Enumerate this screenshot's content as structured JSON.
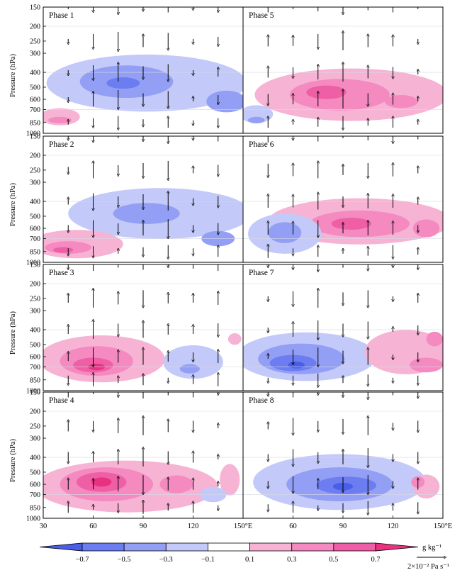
{
  "chart_data": {
    "type": "heatmap",
    "description_unit": "shading: specific humidity anomaly; vectors: vertical motion",
    "x_ticks": [
      "30",
      "60",
      "90",
      "120",
      "150°E"
    ],
    "x_ticks_right": [
      "150°E",
      "60",
      "90",
      "120",
      "150°E"
    ],
    "x_range": [
      30,
      150
    ],
    "y_label": "Pressure (hPa)",
    "y_ticks": [
      "150",
      "200",
      "250",
      "300",
      "400",
      "500",
      "600",
      "700",
      "850",
      "1000"
    ],
    "y_range": [
      150,
      1000
    ],
    "panels": [
      {
        "id": "p1",
        "title": "Phase 1",
        "blobs": [
          {
            "v": -0.1,
            "lon": 92,
            "p": 470,
            "wl": 60,
            "wp": 380
          },
          {
            "v": -0.3,
            "lon": 80,
            "p": 460,
            "wl": 28,
            "wp": 220
          },
          {
            "v": -0.5,
            "lon": 78,
            "p": 470,
            "wl": 10,
            "wp": 80
          },
          {
            "v": -0.3,
            "lon": 140,
            "p": 620,
            "wl": 12,
            "wp": 200
          },
          {
            "v": 0.1,
            "lon": 40,
            "p": 780,
            "wl": 12,
            "wp": 200
          },
          {
            "v": 0.3,
            "lon": 40,
            "p": 820,
            "wl": 7,
            "wp": 80
          }
        ]
      },
      {
        "id": "p5",
        "title": "Phase 5",
        "blobs": [
          {
            "v": 0.1,
            "lon": 95,
            "p": 560,
            "wl": 58,
            "wp": 420
          },
          {
            "v": 0.3,
            "lon": 88,
            "p": 560,
            "wl": 30,
            "wp": 260
          },
          {
            "v": 0.5,
            "lon": 80,
            "p": 540,
            "wl": 12,
            "wp": 110
          },
          {
            "v": 0.3,
            "lon": 125,
            "p": 620,
            "wl": 10,
            "wp": 120
          },
          {
            "v": -0.1,
            "lon": 38,
            "p": 750,
            "wl": 10,
            "wp": 200
          },
          {
            "v": -0.3,
            "lon": 38,
            "p": 820,
            "wl": 5,
            "wp": 80
          }
        ]
      },
      {
        "id": "p2",
        "title": "Phase 2",
        "blobs": [
          {
            "v": -0.1,
            "lon": 100,
            "p": 480,
            "wl": 55,
            "wp": 350
          },
          {
            "v": -0.3,
            "lon": 92,
            "p": 480,
            "wl": 20,
            "wp": 150
          },
          {
            "v": -0.3,
            "lon": 135,
            "p": 700,
            "wl": 10,
            "wp": 160
          },
          {
            "v": 0.1,
            "lon": 50,
            "p": 760,
            "wl": 28,
            "wp": 320
          },
          {
            "v": 0.3,
            "lon": 45,
            "p": 800,
            "wl": 14,
            "wp": 150
          },
          {
            "v": 0.5,
            "lon": 42,
            "p": 830,
            "wl": 6,
            "wp": 60
          }
        ]
      },
      {
        "id": "p6",
        "title": "Phase 6",
        "blobs": [
          {
            "v": 0.1,
            "lon": 100,
            "p": 540,
            "wl": 55,
            "wp": 360
          },
          {
            "v": 0.3,
            "lon": 100,
            "p": 560,
            "wl": 30,
            "wp": 220
          },
          {
            "v": 0.5,
            "lon": 95,
            "p": 560,
            "wl": 12,
            "wp": 100
          },
          {
            "v": 0.3,
            "lon": 140,
            "p": 600,
            "wl": 8,
            "wp": 160
          },
          {
            "v": -0.1,
            "lon": 55,
            "p": 650,
            "wl": 22,
            "wp": 380
          },
          {
            "v": -0.3,
            "lon": 55,
            "p": 640,
            "wl": 10,
            "wp": 200
          }
        ]
      },
      {
        "id": "p3",
        "title": "Phase 3",
        "blobs": [
          {
            "v": 0.1,
            "lon": 65,
            "p": 620,
            "wl": 38,
            "wp": 420
          },
          {
            "v": 0.3,
            "lon": 62,
            "p": 640,
            "wl": 22,
            "wp": 280
          },
          {
            "v": 0.5,
            "lon": 60,
            "p": 680,
            "wl": 12,
            "wp": 150
          },
          {
            "v": 0.7,
            "lon": 62,
            "p": 700,
            "wl": 5,
            "wp": 70
          },
          {
            "v": -0.1,
            "lon": 120,
            "p": 650,
            "wl": 18,
            "wp": 320
          },
          {
            "v": -0.3,
            "lon": 118,
            "p": 720,
            "wl": 6,
            "wp": 100
          },
          {
            "v": 0.1,
            "lon": 145,
            "p": 460,
            "wl": 4,
            "wp": 80
          }
        ]
      },
      {
        "id": "p7",
        "title": "Phase 7",
        "blobs": [
          {
            "v": -0.1,
            "lon": 68,
            "p": 600,
            "wl": 42,
            "wp": 420
          },
          {
            "v": -0.3,
            "lon": 65,
            "p": 620,
            "wl": 26,
            "wp": 280
          },
          {
            "v": -0.5,
            "lon": 60,
            "p": 660,
            "wl": 14,
            "wp": 160
          },
          {
            "v": -0.7,
            "lon": 62,
            "p": 680,
            "wl": 5,
            "wp": 70
          },
          {
            "v": 0.1,
            "lon": 128,
            "p": 560,
            "wl": 25,
            "wp": 360
          },
          {
            "v": 0.3,
            "lon": 140,
            "p": 680,
            "wl": 10,
            "wp": 150
          },
          {
            "v": 0.3,
            "lon": 145,
            "p": 460,
            "wl": 5,
            "wp": 100
          }
        ]
      },
      {
        "id": "p4",
        "title": "Phase 4",
        "blobs": [
          {
            "v": 0.1,
            "lon": 80,
            "p": 620,
            "wl": 55,
            "wp": 460
          },
          {
            "v": 0.3,
            "lon": 68,
            "p": 600,
            "wl": 28,
            "wp": 300
          },
          {
            "v": 0.5,
            "lon": 65,
            "p": 580,
            "wl": 15,
            "wp": 170
          },
          {
            "v": 0.7,
            "lon": 65,
            "p": 580,
            "wl": 6,
            "wp": 80
          },
          {
            "v": 0.3,
            "lon": 110,
            "p": 600,
            "wl": 10,
            "wp": 160
          },
          {
            "v": 0.1,
            "lon": 142,
            "p": 560,
            "wl": 6,
            "wp": 260
          },
          {
            "v": -0.1,
            "lon": 132,
            "p": 700,
            "wl": 8,
            "wp": 160
          }
        ]
      },
      {
        "id": "p8",
        "title": "Phase 8",
        "blobs": [
          {
            "v": -0.1,
            "lon": 88,
            "p": 580,
            "wl": 52,
            "wp": 460
          },
          {
            "v": -0.3,
            "lon": 88,
            "p": 600,
            "wl": 32,
            "wp": 300
          },
          {
            "v": -0.5,
            "lon": 92,
            "p": 610,
            "wl": 18,
            "wp": 160
          },
          {
            "v": -0.7,
            "lon": 90,
            "p": 620,
            "wl": 6,
            "wp": 70
          },
          {
            "v": 0.1,
            "lon": 140,
            "p": 620,
            "wl": 8,
            "wp": 220
          },
          {
            "v": 0.3,
            "lon": 135,
            "p": 580,
            "wl": 4,
            "wp": 100
          }
        ]
      }
    ],
    "vectors": {
      "columns_lon": [
        45,
        60,
        75,
        90,
        105,
        120,
        135
      ],
      "levels_hPa": [
        150,
        250,
        400,
        600,
        850
      ],
      "note": "upward arrows = ascent, downward = descent; lengths approximate"
    },
    "colorbar": {
      "levels": [
        -0.7,
        -0.5,
        -0.3,
        -0.1,
        0.1,
        0.3,
        0.5,
        0.7
      ],
      "labels": [
        "−0.7",
        "−0.5",
        "−0.3",
        "−0.1",
        "0.1",
        "0.3",
        "0.5",
        "0.7"
      ],
      "colors_neg": [
        "#4a5ee8",
        "#6b7df0",
        "#939ff4",
        "#c3c9f8"
      ],
      "color_mid": "#ffffff",
      "colors_pos": [
        "#f7b3d4",
        "#f48ac0",
        "#ef5fa5",
        "#e8327f"
      ],
      "unit": "g kg⁻¹"
    },
    "reference_vector": {
      "label": "2×10⁻² Pa s⁻¹"
    }
  }
}
